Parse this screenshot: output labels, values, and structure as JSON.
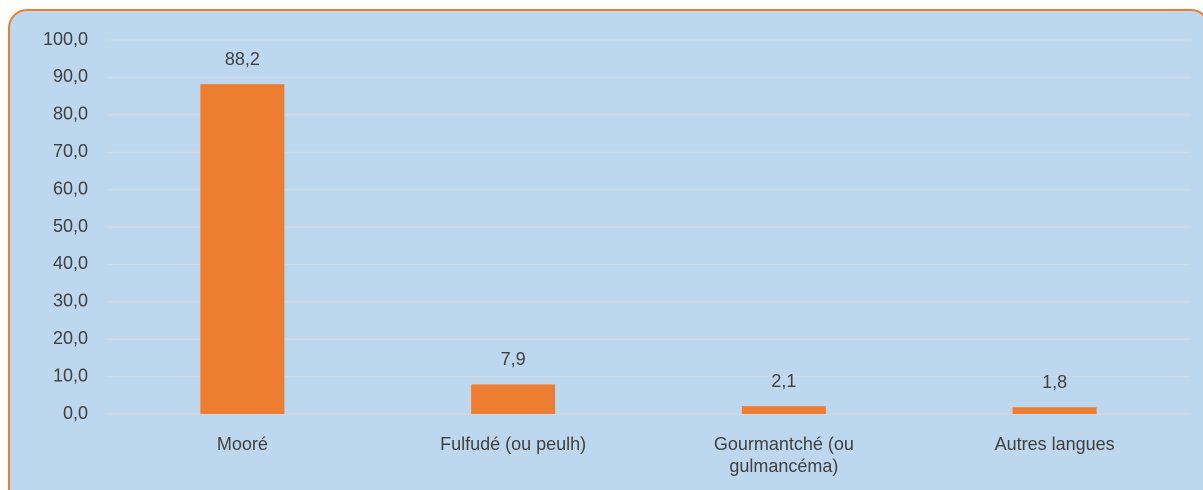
{
  "chart_data": {
    "type": "bar",
    "categories": [
      "Mooré",
      "Fulfudé (ou peulh)",
      "Gourmantché (ou gulmancéma)",
      "Autres langues"
    ],
    "values": [
      88.2,
      7.9,
      2.1,
      1.8
    ],
    "value_labels": [
      "88,2",
      "7,9",
      "2,1",
      "1,8"
    ],
    "color": "#ed7d31",
    "ylim": [
      0,
      100
    ],
    "yticks": [
      {
        "value": 0,
        "label": "0,0"
      },
      {
        "value": 10,
        "label": "10,0"
      },
      {
        "value": 20,
        "label": "20,0"
      },
      {
        "value": 30,
        "label": "30,0"
      },
      {
        "value": 40,
        "label": "40,0"
      },
      {
        "value": 50,
        "label": "50,0"
      },
      {
        "value": 60,
        "label": "60,0"
      },
      {
        "value": 70,
        "label": "70,0"
      },
      {
        "value": 80,
        "label": "80,0"
      },
      {
        "value": 90,
        "label": "90,0"
      },
      {
        "value": 100,
        "label": "100,0"
      }
    ],
    "grid": true
  }
}
